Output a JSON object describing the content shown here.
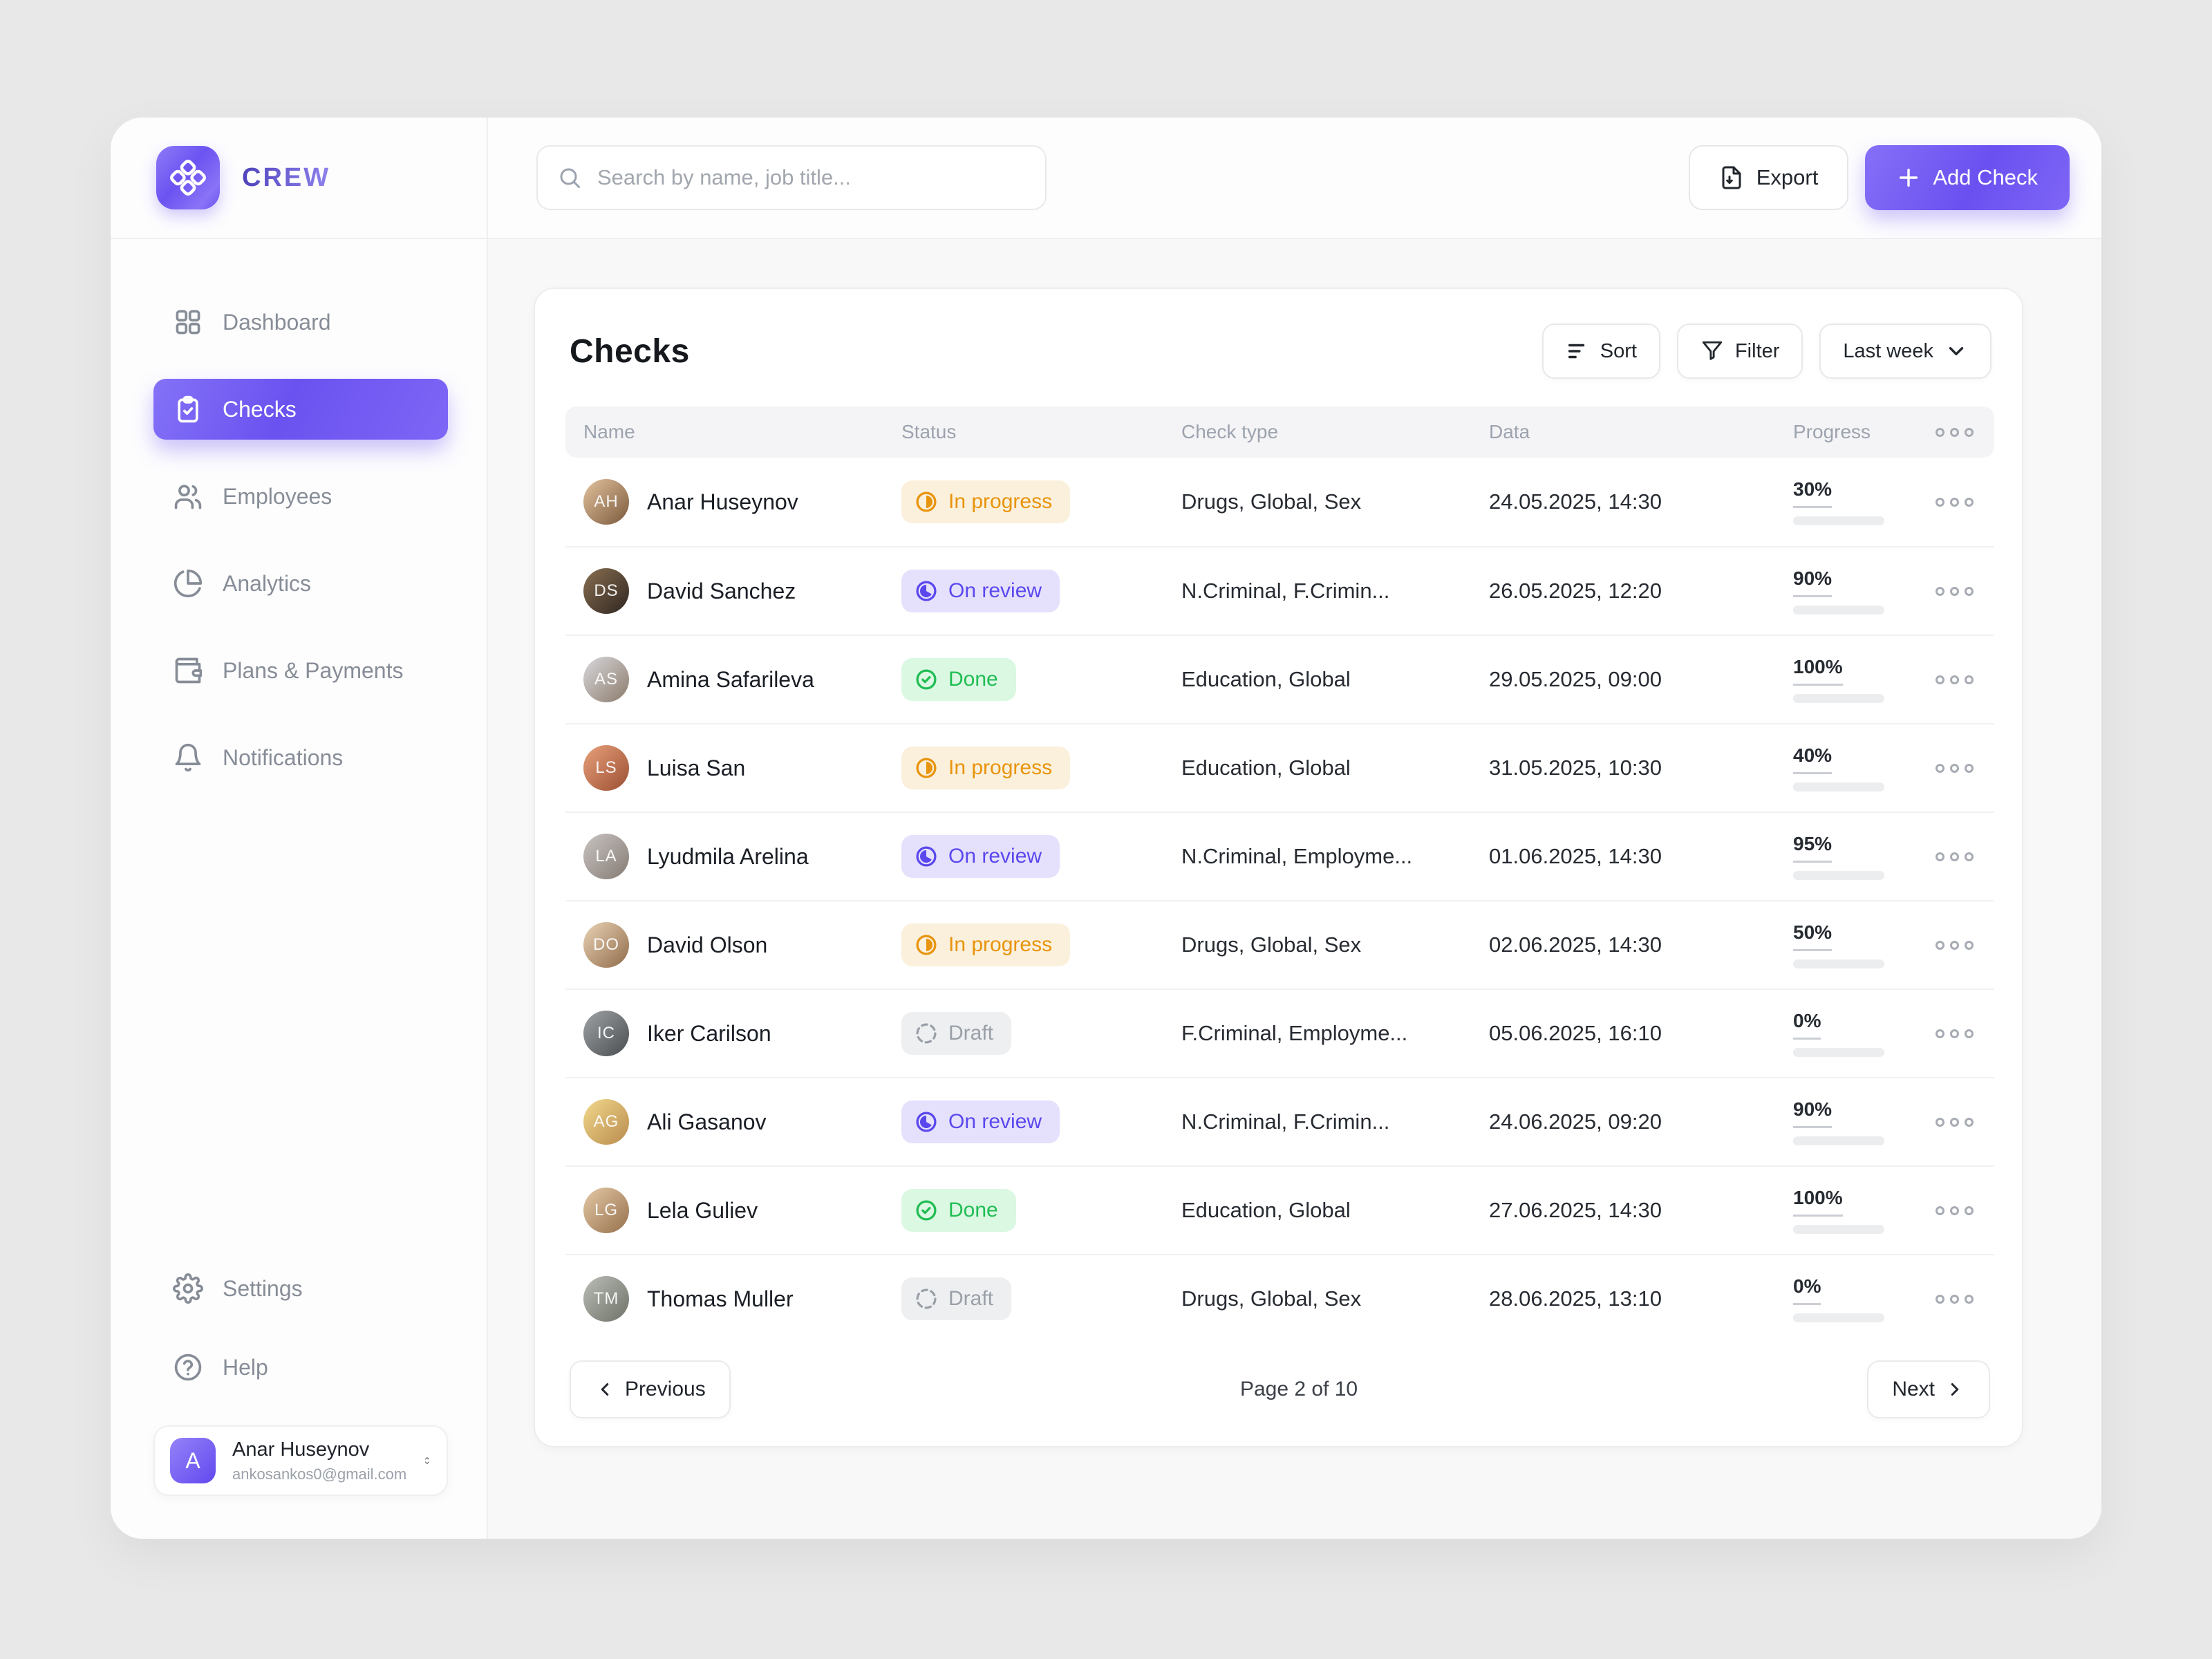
{
  "brand": {
    "name": "CREW"
  },
  "topbar": {
    "search": {
      "placeholder": "Search by name, job title..."
    },
    "export_button": "Export",
    "add_check_button": "Add Check"
  },
  "sidebar": {
    "items": [
      {
        "label": "Dashboard",
        "icon": "dashboard-icon",
        "active": false
      },
      {
        "label": "Checks",
        "icon": "clipboard-check-icon",
        "active": true
      },
      {
        "label": "Employees",
        "icon": "users-icon",
        "active": false
      },
      {
        "label": "Analytics",
        "icon": "pie-chart-icon",
        "active": false
      },
      {
        "label": "Plans & Payments",
        "icon": "wallet-icon",
        "active": false
      },
      {
        "label": "Notifications",
        "icon": "bell-icon",
        "active": false
      }
    ],
    "footer_items": [
      {
        "label": "Settings",
        "icon": "gear-icon"
      },
      {
        "label": "Help",
        "icon": "help-icon"
      }
    ],
    "user": {
      "initial": "A",
      "name": "Anar Huseynov",
      "email": "ankosankos0@gmail.com"
    }
  },
  "page": {
    "title": "Checks",
    "toolbar": {
      "sort": "Sort",
      "filter": "Filter",
      "range": "Last week"
    },
    "table": {
      "columns": [
        "Name",
        "Status",
        "Check type",
        "Data",
        "Progress"
      ],
      "rows": [
        {
          "name": "Anar Huseynov",
          "status": "In progress",
          "status_key": "in-progress",
          "check_type": "Drugs, Global, Sex",
          "data": "24.05.2025, 14:30",
          "progress": 30,
          "avatar": {
            "from": "#E3C29E",
            "to": "#7A5A3C",
            "initials": "AH"
          }
        },
        {
          "name": "David Sanchez",
          "status": "On review",
          "status_key": "on-review",
          "check_type": "N.Criminal, F.Crimin...",
          "data": "26.05.2025, 12:20",
          "progress": 90,
          "avatar": {
            "from": "#8A6F52",
            "to": "#2E2620",
            "initials": "DS"
          }
        },
        {
          "name": "Amina Safarileva",
          "status": "Done",
          "status_key": "done",
          "check_type": "Education, Global",
          "data": "29.05.2025, 09:00",
          "progress": 100,
          "avatar": {
            "from": "#D8D8DC",
            "to": "#8C7B6B",
            "initials": "AS"
          }
        },
        {
          "name": "Luisa San",
          "status": "In progress",
          "status_key": "in-progress",
          "check_type": "Education, Global",
          "data": "31.05.2025, 10:30",
          "progress": 40,
          "avatar": {
            "from": "#E8A17A",
            "to": "#9C4F33",
            "initials": "LS"
          }
        },
        {
          "name": "Lyudmila Arelina",
          "status": "On review",
          "status_key": "on-review",
          "check_type": "N.Criminal, Employme...",
          "data": "01.06.2025, 14:30",
          "progress": 95,
          "avatar": {
            "from": "#C9C4C2",
            "to": "#857B74",
            "initials": "LA"
          }
        },
        {
          "name": "David Olson",
          "status": "In progress",
          "status_key": "in-progress",
          "check_type": "Drugs, Global, Sex",
          "data": "02.06.2025, 14:30",
          "progress": 50,
          "avatar": {
            "from": "#EBD3B6",
            "to": "#8F6B4A",
            "initials": "DO"
          }
        },
        {
          "name": "Iker Carilson",
          "status": "Draft",
          "status_key": "draft",
          "check_type": "F.Criminal, Employme...",
          "data": "05.06.2025, 16:10",
          "progress": 0,
          "avatar": {
            "from": "#9FA3A6",
            "to": "#4A4D50",
            "initials": "IC"
          }
        },
        {
          "name": "Ali Gasanov",
          "status": "On review",
          "status_key": "on-review",
          "check_type": "N.Criminal, F.Crimin...",
          "data": "24.06.2025, 09:20",
          "progress": 90,
          "avatar": {
            "from": "#F2D98C",
            "to": "#B98B4E",
            "initials": "AG"
          }
        },
        {
          "name": "Lela Guliev",
          "status": "Done",
          "status_key": "done",
          "check_type": "Education, Global",
          "data": "27.06.2025, 14:30",
          "progress": 100,
          "avatar": {
            "from": "#E5C9A6",
            "to": "#96704C",
            "initials": "LG"
          }
        },
        {
          "name": "Thomas Muller",
          "status": "Draft",
          "status_key": "draft",
          "check_type": "Drugs, Global, Sex",
          "data": "28.06.2025, 13:10",
          "progress": 0,
          "avatar": {
            "from": "#B9BDB6",
            "to": "#6E7268",
            "initials": "TM"
          }
        }
      ]
    },
    "pagination": {
      "previous": "Previous",
      "page_info": "Page 2 of 10",
      "next": "Next"
    }
  },
  "colors": {
    "accent": "#6C55F1",
    "status": {
      "in-progress": {
        "text": "#E8940C",
        "bg": "#FBF0DC",
        "bar": "#F0A41F"
      },
      "on-review": {
        "text": "#5A48EE",
        "bg": "#E5E1FC",
        "bar": "#6553F3"
      },
      "done": {
        "text": "#21BD53",
        "bg": "#DBF8E3",
        "bar": "#2FCB5E"
      },
      "draft": {
        "text": "#9AA0A8",
        "bg": "#EEEFF1",
        "bar": "#E8E9EB"
      }
    }
  }
}
